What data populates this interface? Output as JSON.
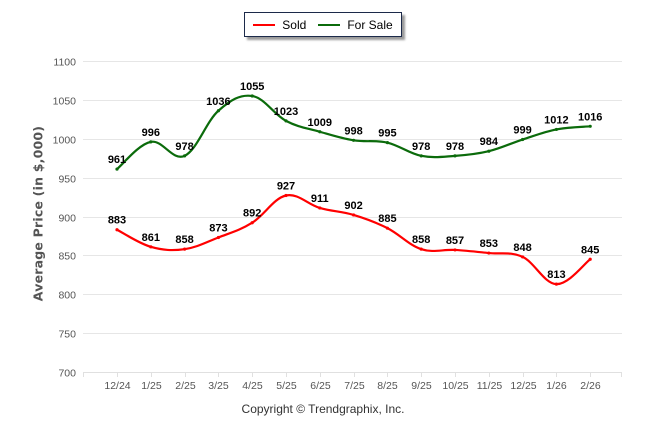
{
  "chart_data": {
    "type": "line",
    "title": "",
    "xlabel": "",
    "ylabel": "Average Price (in $,000)",
    "categories": [
      "12/24",
      "1/25",
      "2/25",
      "3/25",
      "4/25",
      "5/25",
      "6/25",
      "7/25",
      "8/25",
      "9/25",
      "10/25",
      "11/25",
      "12/25",
      "1/26",
      "2/26"
    ],
    "ylim": [
      700,
      1100
    ],
    "yticks": [
      700,
      750,
      800,
      850,
      900,
      950,
      1000,
      1050,
      1100
    ],
    "grid": true,
    "legend_position": "top-center",
    "series": [
      {
        "name": "Sold",
        "color": "#ff0000",
        "values": [
          883,
          861,
          858,
          873,
          892,
          927,
          911,
          902,
          885,
          858,
          857,
          853,
          848,
          813,
          845
        ]
      },
      {
        "name": "For Sale",
        "color": "#0b6b0b",
        "values": [
          961,
          996,
          978,
          1036,
          1055,
          1023,
          1009,
          998,
          995,
          978,
          978,
          984,
          999,
          1012,
          1016
        ]
      }
    ]
  },
  "legend": {
    "items": [
      {
        "label": "Sold",
        "color": "#ff0000"
      },
      {
        "label": "For Sale",
        "color": "#0b6b0b"
      }
    ]
  },
  "footer": {
    "copyright": "Copyright © Trendgraphix, Inc."
  }
}
